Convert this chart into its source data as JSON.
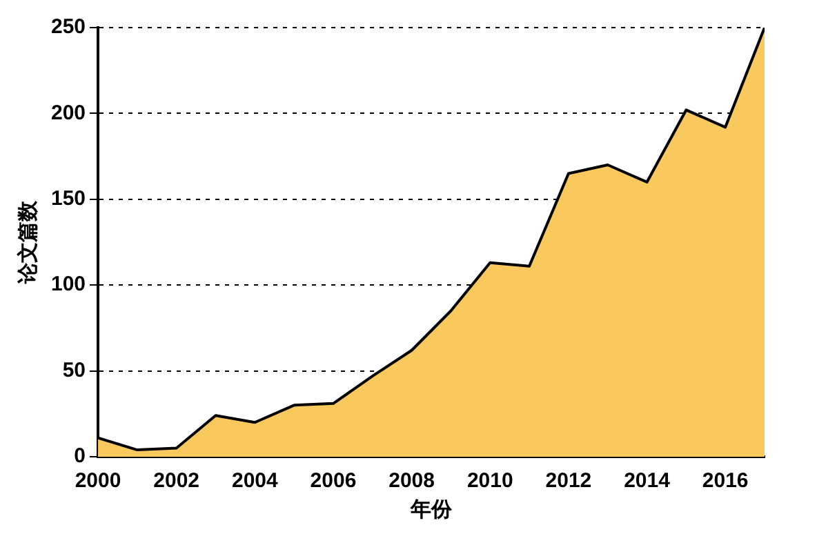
{
  "chart_data": {
    "type": "area",
    "xlabel": "年份",
    "ylabel": "论文篇数",
    "x": [
      2000,
      2001,
      2002,
      2003,
      2004,
      2005,
      2006,
      2007,
      2008,
      2009,
      2010,
      2011,
      2012,
      2013,
      2014,
      2015,
      2016,
      2017
    ],
    "series": [
      {
        "color": "#f9c95e",
        "values": [
          11,
          4,
          5,
          24,
          20,
          30,
          31,
          47,
          62,
          85,
          113,
          111,
          165,
          170,
          160,
          202,
          192,
          250
        ]
      }
    ],
    "xlim": [
      2000,
      2017
    ],
    "xticks": [
      2000,
      2002,
      2004,
      2006,
      2008,
      2010,
      2012,
      2014,
      2016
    ],
    "ylim": [
      0,
      250
    ],
    "yticks": [
      0,
      50,
      100,
      150,
      200,
      250
    ],
    "grid": "y",
    "line_style": "solid",
    "legend": false
  }
}
